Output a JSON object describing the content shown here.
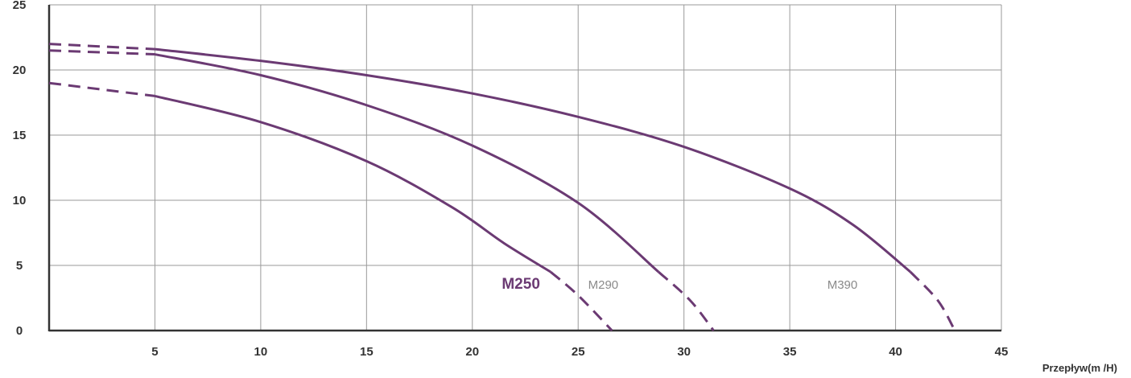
{
  "chart_data": {
    "type": "line",
    "xlabel": "Przepływ(m /H)",
    "ylabel": "",
    "xlim": [
      0,
      45
    ],
    "ylim": [
      0,
      25
    ],
    "xticks": [
      5,
      10,
      15,
      20,
      25,
      30,
      35,
      40,
      45
    ],
    "yticks": [
      0,
      5,
      10,
      15,
      20,
      25
    ],
    "grid": true,
    "line_color": "#6b3a73",
    "series": [
      {
        "name": "M250",
        "label_style": "bold-colored",
        "label_pos": [
          23.2,
          3.2
        ],
        "dashed_start": [
          [
            0,
            19.0
          ],
          [
            5,
            18.0
          ]
        ],
        "solid": [
          [
            5,
            18.0
          ],
          [
            10,
            16.0
          ],
          [
            15,
            13.0
          ],
          [
            19,
            9.5
          ],
          [
            21.5,
            6.7
          ],
          [
            23.7,
            4.5
          ]
        ],
        "dashed_end": [
          [
            23.7,
            4.5
          ],
          [
            25,
            2.7
          ],
          [
            26.6,
            0
          ]
        ]
      },
      {
        "name": "M290",
        "label_style": "plain-gray",
        "label_pos": [
          26.9,
          3.2
        ],
        "dashed_start": [
          [
            0,
            21.5
          ],
          [
            5,
            21.2
          ]
        ],
        "solid": [
          [
            5,
            21.2
          ],
          [
            10,
            19.6
          ],
          [
            15,
            17.3
          ],
          [
            20,
            14.2
          ],
          [
            25,
            9.8
          ],
          [
            28.8,
            4.5
          ]
        ],
        "dashed_end": [
          [
            28.8,
            4.5
          ],
          [
            30.3,
            2.3
          ],
          [
            31.4,
            0
          ]
        ]
      },
      {
        "name": "M390",
        "label_style": "plain-gray",
        "label_pos": [
          38.2,
          3.2
        ],
        "dashed_start": [
          [
            0,
            22.0
          ],
          [
            5,
            21.6
          ]
        ],
        "solid": [
          [
            5,
            21.6
          ],
          [
            10,
            20.7
          ],
          [
            15,
            19.6
          ],
          [
            20,
            18.2
          ],
          [
            25,
            16.4
          ],
          [
            30,
            14.1
          ],
          [
            35,
            10.9
          ],
          [
            38,
            8.1
          ],
          [
            40.7,
            4.5
          ]
        ],
        "dashed_end": [
          [
            40.7,
            4.5
          ],
          [
            42,
            2.3
          ],
          [
            42.8,
            0
          ]
        ]
      }
    ]
  }
}
